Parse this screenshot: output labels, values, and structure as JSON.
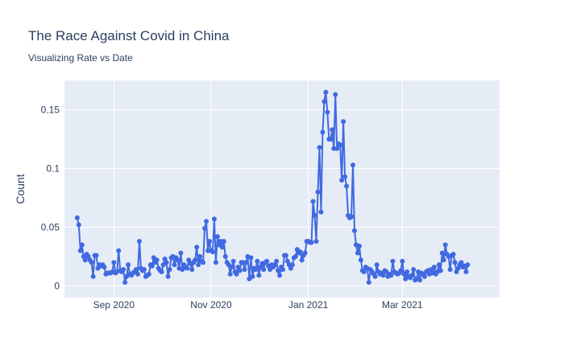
{
  "chart_data": {
    "type": "line",
    "title": "The Race Against Covid in China",
    "subtitle": "Visualizing Rate vs Date",
    "y_label": "Count",
    "grid": true,
    "ylim": [
      -0.01,
      0.175
    ],
    "yticks": [
      0,
      0.05,
      0.1,
      0.15
    ],
    "xlim": [
      "2020-08",
      "2021-05"
    ],
    "xticks": [
      {
        "value": "2020-09",
        "label": "Sep 2020"
      },
      {
        "value": "2020-11",
        "label": "Nov 2020"
      },
      {
        "value": "2021-01",
        "label": "Jan 2021"
      },
      {
        "value": "2021-03",
        "label": "Mar 2021"
      }
    ],
    "x": [
      "2020-08",
      "2020-08",
      "2020-08",
      "2020-08",
      "2020-08",
      "2020-08",
      "2020-08",
      "2020-08",
      "2020-08",
      "2020-08",
      "2020-08",
      "2020-08",
      "2020-08",
      "2020-08",
      "2020-08",
      "2020-08",
      "2020-08",
      "2020-08",
      "2020-08",
      "2020-08",
      "2020-08",
      "2020-08",
      "2020-08",
      "2020-09",
      "2020-09",
      "2020-09",
      "2020-09",
      "2020-09",
      "2020-09",
      "2020-09",
      "2020-09",
      "2020-09",
      "2020-09",
      "2020-09",
      "2020-09",
      "2020-09",
      "2020-09",
      "2020-09",
      "2020-09",
      "2020-09",
      "2020-09",
      "2020-09",
      "2020-09",
      "2020-09",
      "2020-09",
      "2020-09",
      "2020-09",
      "2020-09",
      "2020-09",
      "2020-09",
      "2020-09",
      "2020-09",
      "2020-09",
      "2020-10",
      "2020-10",
      "2020-10",
      "2020-10",
      "2020-10",
      "2020-10",
      "2020-10",
      "2020-10",
      "2020-10",
      "2020-10",
      "2020-10",
      "2020-10",
      "2020-10",
      "2020-10",
      "2020-10",
      "2020-10",
      "2020-10",
      "2020-10",
      "2020-10",
      "2020-10",
      "2020-10",
      "2020-10",
      "2020-10",
      "2020-10",
      "2020-10",
      "2020-10",
      "2020-10",
      "2020-10",
      "2020-10",
      "2020-10",
      "2020-10",
      "2020-11",
      "2020-11",
      "2020-11",
      "2020-11",
      "2020-11",
      "2020-11",
      "2020-11",
      "2020-11",
      "2020-11",
      "2020-11",
      "2020-11",
      "2020-11",
      "2020-11",
      "2020-11",
      "2020-11",
      "2020-11",
      "2020-11",
      "2020-11",
      "2020-11",
      "2020-11",
      "2020-11",
      "2020-11",
      "2020-11",
      "2020-11",
      "2020-11",
      "2020-11",
      "2020-11",
      "2020-11",
      "2020-11",
      "2020-11",
      "2020-12",
      "2020-12",
      "2020-12",
      "2020-12",
      "2020-12",
      "2020-12",
      "2020-12",
      "2020-12",
      "2020-12",
      "2020-12",
      "2020-12",
      "2020-12",
      "2020-12",
      "2020-12",
      "2020-12",
      "2020-12",
      "2020-12",
      "2020-12",
      "2020-12",
      "2020-12",
      "2020-12",
      "2020-12",
      "2020-12",
      "2020-12",
      "2020-12",
      "2020-12",
      "2020-12",
      "2020-12",
      "2020-12",
      "2020-12",
      "2020-12",
      "2021-01",
      "2021-01",
      "2021-01",
      "2021-01",
      "2021-01",
      "2021-01",
      "2021-01",
      "2021-01",
      "2021-01",
      "2021-01",
      "2021-01",
      "2021-01",
      "2021-01",
      "2021-01",
      "2021-01",
      "2021-01",
      "2021-01",
      "2021-01",
      "2021-01",
      "2021-01",
      "2021-01",
      "2021-01",
      "2021-01",
      "2021-01",
      "2021-01",
      "2021-01",
      "2021-01",
      "2021-01",
      "2021-01",
      "2021-01",
      "2021-01",
      "2021-02",
      "2021-02",
      "2021-02",
      "2021-02",
      "2021-02",
      "2021-02",
      "2021-02",
      "2021-02",
      "2021-02",
      "2021-02",
      "2021-02",
      "2021-02",
      "2021-02",
      "2021-02",
      "2021-02",
      "2021-02",
      "2021-02",
      "2021-02",
      "2021-02",
      "2021-02",
      "2021-02",
      "2021-02",
      "2021-02",
      "2021-02",
      "2021-02",
      "2021-02",
      "2021-02",
      "2021-02",
      "2021-03",
      "2021-03",
      "2021-03",
      "2021-03",
      "2021-03",
      "2021-03",
      "2021-03",
      "2021-03",
      "2021-03",
      "2021-03",
      "2021-03",
      "2021-03",
      "2021-03",
      "2021-03",
      "2021-03",
      "2021-03",
      "2021-03",
      "2021-03",
      "2021-03",
      "2021-03",
      "2021-03",
      "2021-03",
      "2021-03",
      "2021-03",
      "2021-03",
      "2021-03",
      "2021-03",
      "2021-03",
      "2021-03",
      "2021-03",
      "2021-03",
      "2021-04",
      "2021-04",
      "2021-04",
      "2021-04",
      "2021-04",
      "2021-04",
      "2021-04",
      "2021-04",
      "2021-04",
      "2021-04",
      "2021-04"
    ],
    "color": "#4169e1",
    "values": [
      0.058,
      0.052,
      0.03,
      0.035,
      0.025,
      0.022,
      0.027,
      0.025,
      0.022,
      0.02,
      0.008,
      0.026,
      0.026,
      0.015,
      0.018,
      0.017,
      0.018,
      0.016,
      0.01,
      0.011,
      0.011,
      0.011,
      0.012,
      0.02,
      0.011,
      0.012,
      0.03,
      0.013,
      0.012,
      0.014,
      0.003,
      0.008,
      0.018,
      0.01,
      0.009,
      0.011,
      0.012,
      0.014,
      0.01,
      0.038,
      0.015,
      0.013,
      0.014,
      0.008,
      0.009,
      0.01,
      0.018,
      0.017,
      0.024,
      0.02,
      0.022,
      0.015,
      0.013,
      0.012,
      0.018,
      0.023,
      0.02,
      0.008,
      0.014,
      0.024,
      0.025,
      0.018,
      0.024,
      0.022,
      0.015,
      0.028,
      0.014,
      0.018,
      0.016,
      0.015,
      0.022,
      0.019,
      0.014,
      0.02,
      0.022,
      0.033,
      0.018,
      0.025,
      0.021,
      0.02,
      0.049,
      0.055,
      0.03,
      0.038,
      0.03,
      0.029,
      0.057,
      0.02,
      0.042,
      0.035,
      0.038,
      0.033,
      0.038,
      0.025,
      0.02,
      0.018,
      0.01,
      0.016,
      0.021,
      0.012,
      0.01,
      0.016,
      0.013,
      0.02,
      0.02,
      0.014,
      0.02,
      0.025,
      0.006,
      0.024,
      0.008,
      0.015,
      0.014,
      0.021,
      0.009,
      0.016,
      0.019,
      0.014,
      0.02,
      0.021,
      0.017,
      0.014,
      0.018,
      0.016,
      0.018,
      0.021,
      0.013,
      0.009,
      0.016,
      0.014,
      0.026,
      0.026,
      0.021,
      0.018,
      0.015,
      0.018,
      0.024,
      0.025,
      0.031,
      0.028,
      0.029,
      0.022,
      0.026,
      0.028,
      0.038,
      0.038,
      0.037,
      0.037,
      0.072,
      0.06,
      0.038,
      0.08,
      0.118,
      0.063,
      0.131,
      0.157,
      0.165,
      0.148,
      0.125,
      0.125,
      0.133,
      0.117,
      0.163,
      0.117,
      0.121,
      0.12,
      0.09,
      0.14,
      0.093,
      0.085,
      0.06,
      0.058,
      0.059,
      0.103,
      0.047,
      0.035,
      0.028,
      0.034,
      0.022,
      0.013,
      0.012,
      0.016,
      0.015,
      0.003,
      0.014,
      0.012,
      0.01,
      0.008,
      0.018,
      0.012,
      0.01,
      0.011,
      0.009,
      0.013,
      0.012,
      0.008,
      0.01,
      0.009,
      0.021,
      0.012,
      0.011,
      0.01,
      0.011,
      0.013,
      0.021,
      0.01,
      0.006,
      0.012,
      0.008,
      0.007,
      0.009,
      0.014,
      0.005,
      0.006,
      0.012,
      0.005,
      0.011,
      0.01,
      0.008,
      0.012,
      0.013,
      0.01,
      0.014,
      0.011,
      0.016,
      0.01,
      0.012,
      0.018,
      0.013,
      0.028,
      0.022,
      0.035,
      0.027,
      0.025,
      0.014,
      0.026,
      0.027,
      0.02,
      0.012,
      0.015,
      0.018,
      0.02,
      0.016,
      0.017,
      0.012,
      0.018
    ]
  }
}
